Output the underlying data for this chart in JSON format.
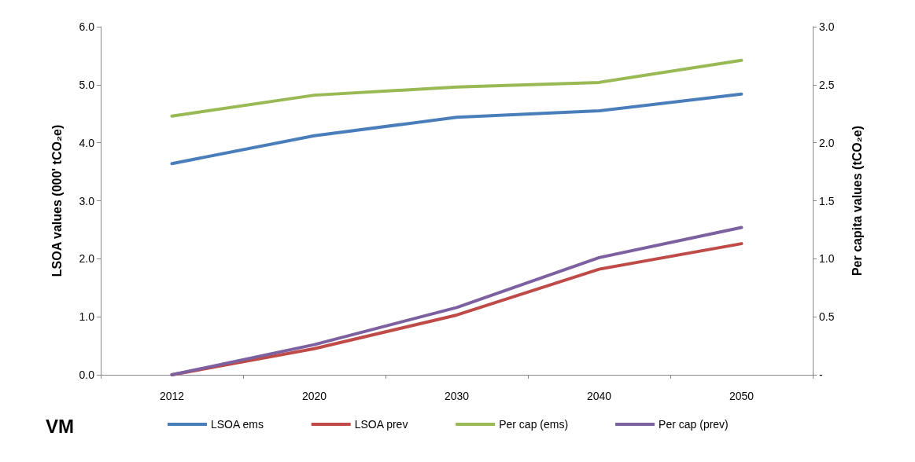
{
  "chart_data": {
    "type": "line",
    "ylabel": "LSOA values (000' tCO₂e)",
    "y2label": "Per capita values (tCO₂e)",
    "categories": [
      "2012",
      "2020",
      "2030",
      "2040",
      "2050"
    ],
    "series": [
      {
        "name": "LSOA ems",
        "color": "#4a7ebb",
        "values": [
          3.64,
          4.12,
          4.44,
          4.55,
          4.84
        ]
      },
      {
        "name": "LSOA prev",
        "color": "#be4b48",
        "values": [
          0,
          0.45,
          1.03,
          1.82,
          2.26
        ]
      },
      {
        "name": "Per cap (ems)",
        "color": "#98b954",
        "axis": "y2",
        "values": [
          2.23,
          2.41,
          2.48,
          2.52,
          2.71
        ]
      },
      {
        "name": "Per cap (prev)",
        "color": "#7d60a0",
        "axis": "y2",
        "values": [
          0,
          0.26,
          0.58,
          1.01,
          1.27
        ]
      }
    ],
    "ylim": [
      0,
      6
    ],
    "yticks": [
      {
        "value": 0,
        "label": "0.0"
      },
      {
        "value": 1,
        "label": "1.0"
      },
      {
        "value": 2,
        "label": "2.0"
      },
      {
        "value": 3,
        "label": "3.0"
      },
      {
        "value": 4,
        "label": "4.0"
      },
      {
        "value": 5,
        "label": "5.0"
      },
      {
        "value": 6,
        "label": "6.0"
      }
    ],
    "y2lim": [
      0,
      3
    ],
    "y2ticks": [
      {
        "value": 0,
        "label": "-"
      },
      {
        "value": 0.5,
        "label": "0.5"
      },
      {
        "value": 1,
        "label": "1.0"
      },
      {
        "value": 1.5,
        "label": "1.5"
      },
      {
        "value": 2,
        "label": "2.0"
      },
      {
        "value": 2.5,
        "label": "2.5"
      },
      {
        "value": 3,
        "label": "3.0"
      }
    ],
    "annotations": [
      "VM"
    ],
    "legend": "bottom",
    "grid": false,
    "marker": "none",
    "line_style": "solid"
  }
}
